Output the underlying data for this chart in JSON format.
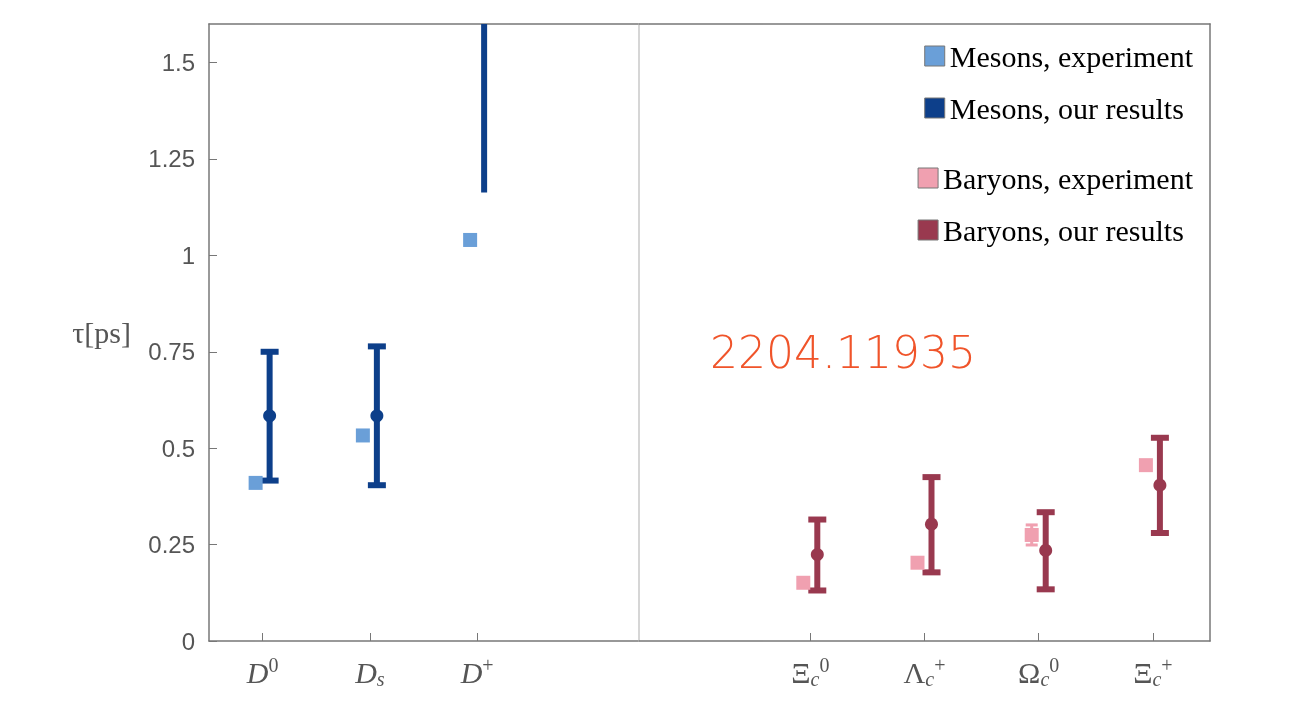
{
  "chart_data": [
    {
      "type": "scatter",
      "ylabel": "τ[ps]",
      "categories": [
        "D$^{0}$",
        "D$_{s}$",
        "D$^{+}$",
        null
      ],
      "ylim": [
        0,
        1.6
      ],
      "yticks": [
        0,
        0.25,
        0.5,
        0.75,
        1,
        1.25,
        1.5
      ],
      "series": [
        {
          "name": "Mesons, experiment",
          "color": "#6a9fd8",
          "marker": "square",
          "x": [
            "D$^{0}$",
            "D$_{s}$",
            "D$^{+}$"
          ],
          "values": [
            0.41,
            0.533,
            1.04
          ],
          "errors": [
            null,
            null,
            0.013
          ]
        },
        {
          "name": "Mesons, our results",
          "color": "#0d3f8a",
          "marker": "circle",
          "x": [
            "D$^{0}$",
            "D$_{s}$"
          ],
          "values": [
            0.584,
            0.584
          ],
          "errors": [
            [
              0.416,
              0.75
            ],
            0.18
          ]
        },
        {
          "type": "bar",
          "color": "#0d3f8a",
          "x": [
            "D$^{+}$"
          ],
          "base": [
            1.163
          ],
          "values": [
            0.437
          ]
        }
      ],
      "legend": "top right",
      "grid": false
    },
    {
      "type": "scatter",
      "annotations": [
        "2204.11935"
      ],
      "categories": [
        null,
        "Ξ$_{c}$$^{0}$",
        "Λ$_{c}$$^{+}$",
        "Ω$_{c}$$^{0}$",
        "Ξ$_{c}$$^{+}$"
      ],
      "ylim": [
        0,
        1.6
      ],
      "yticks": [
        0,
        0.25,
        0.5,
        0.75,
        1,
        1.25,
        1.5
      ],
      "tick_labels": "x",
      "series": [
        {
          "name": "Baryons, experiment",
          "color": "#f0a0b0",
          "marker": "square",
          "x": [
            "Ξ$_{c}$$^{0}$",
            "Λ$_{c}$$^{+}$",
            "Ω$_{c}$$^{0}$",
            "Ξ$_{c}$$^{+}$"
          ],
          "values": [
            0.151,
            0.203,
            0.275,
            0.456
          ],
          "errors": [
            null,
            null,
            0.026,
            null
          ]
        },
        {
          "name": "Baryons, our results",
          "color": "#99394f",
          "marker": "circle",
          "x": [
            "Ξ$_{c}$$^{0}$",
            "Λ$_{c}$$^{+}$",
            "Ω$_{c}$$^{0}$",
            "Ξ$_{c}$$^{+}$"
          ],
          "values": [
            0.224,
            0.303,
            0.235,
            0.404
          ],
          "errors": [
            [
              0.131,
              0.315
            ],
            [
              0.178,
              0.425
            ],
            [
              0.134,
              0.334
            ],
            [
              0.28,
              0.527
            ]
          ]
        }
      ],
      "legend": "top right",
      "grid": false
    }
  ]
}
